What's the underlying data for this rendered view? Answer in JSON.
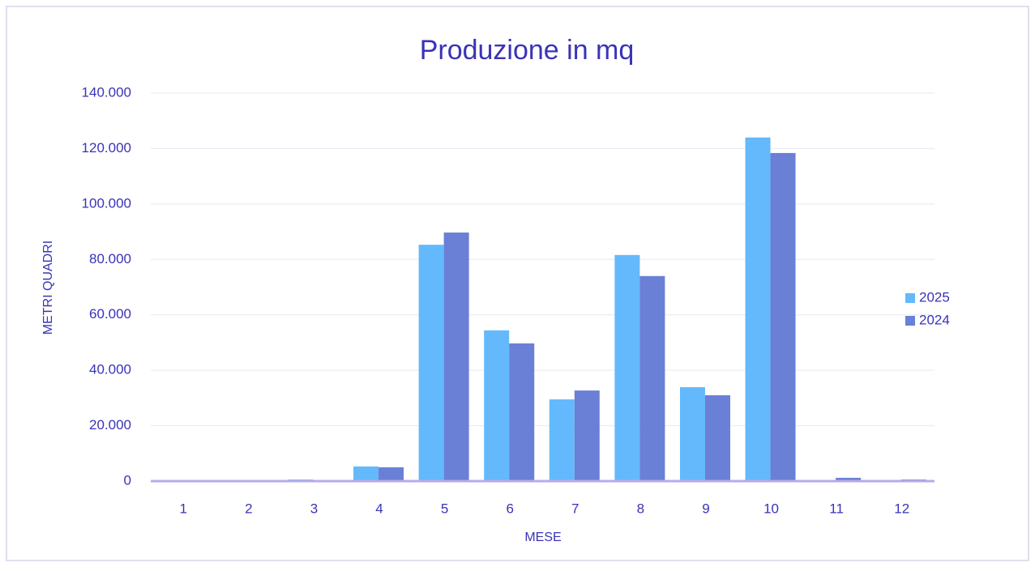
{
  "chart_data": {
    "type": "bar",
    "title": "Produzione in mq",
    "x_label": "MESE",
    "y_label": "METRI QUADRI",
    "categories": [
      "1",
      "2",
      "3",
      "4",
      "5",
      "6",
      "7",
      "8",
      "9",
      "10",
      "11",
      "12"
    ],
    "series": [
      {
        "name": "2025",
        "color": "#63b9fc",
        "values": [
          0,
          0,
          600,
          5300,
          85300,
          54400,
          29500,
          81600,
          33900,
          124000,
          0,
          0
        ]
      },
      {
        "name": "2024",
        "color": "#6a7fd6",
        "values": [
          0,
          0,
          0,
          5000,
          89700,
          49700,
          32700,
          74000,
          31000,
          118400,
          1200,
          600
        ]
      }
    ],
    "ylim": [
      0,
      140000
    ],
    "yticks": [
      0,
      {
        "value": 20000,
        "label": "20.000"
      },
      {
        "value": 40000,
        "label": "40.000"
      },
      {
        "value": 60000,
        "label": "60.000"
      },
      {
        "value": 80000,
        "label": "80.000"
      },
      {
        "value": 100000,
        "label": "100.000"
      },
      {
        "value": 120000,
        "label": "120.000"
      },
      {
        "value": 140000,
        "label": "140.000"
      }
    ],
    "grid": true,
    "legend": "right"
  }
}
